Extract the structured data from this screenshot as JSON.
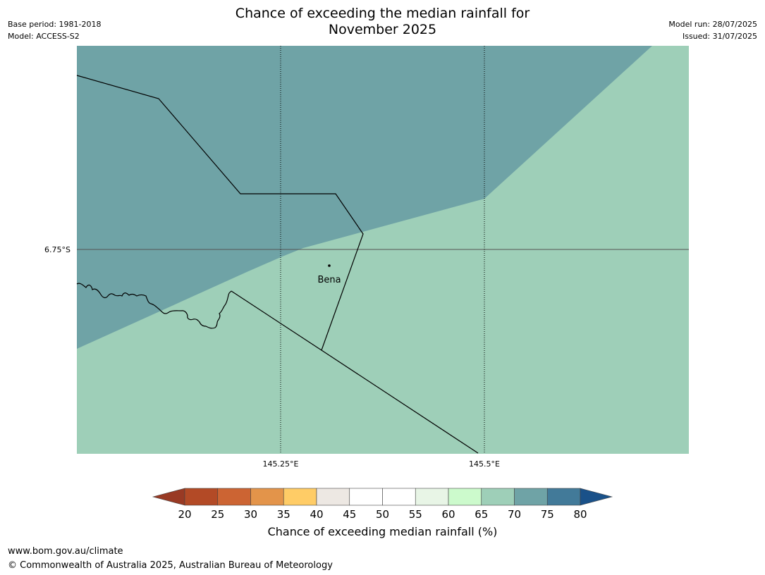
{
  "title_line1": "Chance of exceeding the median rainfall for",
  "title_line2": "November 2025",
  "meta_left": [
    "Base period: 1981-2018",
    "Model: ACCESS-S2"
  ],
  "meta_right": [
    "Model run: 28/07/2025",
    "Issued: 31/07/2025"
  ],
  "map": {
    "latitude_labels": [
      "6.75°S"
    ],
    "longitude_labels": [
      "145.25°E",
      "145.5°E"
    ],
    "place_label": "Bena",
    "region_colors": {
      "upper_left": "#6fa3a6",
      "lower_right": "#9ecfb8"
    }
  },
  "colorbar": {
    "title": "Chance of exceeding median rainfall (%)",
    "tick_labels": [
      "20",
      "25",
      "30",
      "35",
      "40",
      "45",
      "50",
      "55",
      "60",
      "65",
      "70",
      "75",
      "80"
    ],
    "low_extend_color": "#993a24",
    "high_extend_color": "#1a5189",
    "colors": [
      "#b34a26",
      "#cc6433",
      "#e3944a",
      "#ffcc66",
      "#ede8e3",
      "#ffffff",
      "#ffffff",
      "#e8f5e6",
      "#ccfacc",
      "#9ecfb8",
      "#6fa3a6",
      "#427a99"
    ]
  },
  "footer": {
    "url": "www.bom.gov.au/climate",
    "copyright": "© Commonwealth of Australia 2025, Australian Bureau of Meteorology"
  }
}
